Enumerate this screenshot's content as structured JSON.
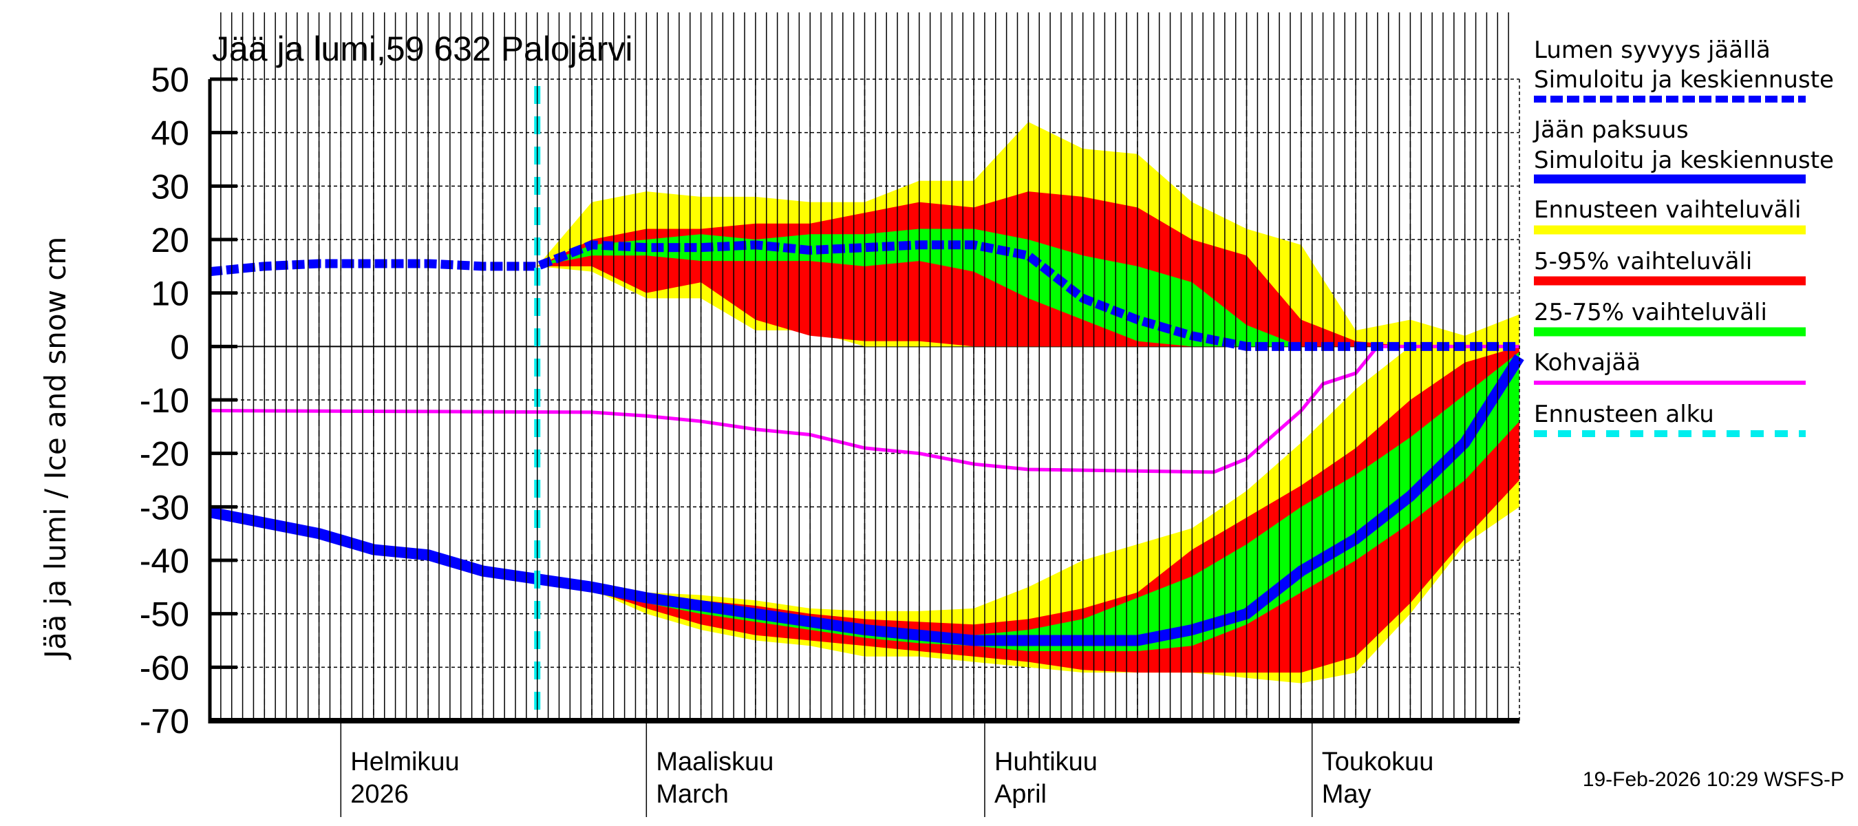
{
  "chart_data": {
    "type": "area",
    "title": "Jää ja lumi,59 632 Palojärvi",
    "ylabel": "Jää ja lumi / Ice and snow    cm",
    "ylim": [
      -70,
      50
    ],
    "yticks": [
      "50",
      "40",
      "30",
      "20",
      "10",
      "0",
      "-10",
      "-20",
      "-30",
      "-40",
      "-50",
      "-60",
      "-70"
    ],
    "xlim": [
      "2026-01-20",
      "2026-05-20"
    ],
    "grid": true,
    "legend_placement": "right",
    "month_labels": [
      {
        "date": "2026-02-01",
        "fi": "Helmikuu",
        "en": "2026"
      },
      {
        "date": "2026-03-01",
        "fi": "Maaliskuu",
        "en": "March"
      },
      {
        "date": "2026-04-01",
        "fi": "Huhtikuu",
        "en": "April"
      },
      {
        "date": "2026-05-01",
        "fi": "Toukokuu",
        "en": "May"
      }
    ],
    "forecast_start": "2026-02-19",
    "timestamp": "19-Feb-2026 10:29 WSFS-P",
    "colors": {
      "snow": "#0000ff",
      "ice": "#0000ff",
      "range": "#ffff00",
      "p5_95": "#ff0000",
      "p25_75": "#00ff00",
      "slush": "#ff00ff",
      "forecast_start": "#00eeee"
    },
    "dates": [
      "2026-01-20",
      "2026-01-25",
      "2026-01-30",
      "2026-02-04",
      "2026-02-09",
      "2026-02-14",
      "2026-02-19",
      "2026-02-24",
      "2026-03-01",
      "2026-03-06",
      "2026-03-11",
      "2026-03-16",
      "2026-03-21",
      "2026-03-26",
      "2026-03-31",
      "2026-04-05",
      "2026-04-10",
      "2026-04-15",
      "2026-04-20",
      "2026-04-25",
      "2026-04-30",
      "2026-05-05",
      "2026-05-10",
      "2026-05-15",
      "2026-05-20"
    ],
    "snow": {
      "median": [
        14,
        15,
        15.5,
        15.5,
        15.5,
        15,
        15,
        19,
        18.5,
        18.5,
        19,
        18,
        18.5,
        19,
        19,
        17,
        9,
        5,
        2,
        0,
        0,
        0,
        0,
        0,
        0
      ],
      "range_top": [
        null,
        null,
        null,
        null,
        null,
        null,
        15,
        27,
        29,
        28,
        28,
        27,
        27,
        31,
        31,
        42,
        37,
        36,
        27,
        22,
        19,
        3,
        5,
        2,
        6
      ],
      "range_bottom": [
        null,
        null,
        null,
        null,
        null,
        null,
        15,
        14,
        9,
        9,
        3,
        3,
        0,
        0,
        0,
        0,
        0,
        0,
        0,
        0,
        0,
        0,
        0,
        0,
        0
      ],
      "p95": [
        null,
        null,
        null,
        null,
        null,
        null,
        15,
        20,
        22,
        22,
        23,
        23,
        25,
        27,
        26,
        29,
        28,
        26,
        20,
        17,
        5,
        1,
        0,
        0,
        0
      ],
      "p5": [
        null,
        null,
        null,
        null,
        null,
        null,
        15,
        15,
        10,
        12,
        5,
        2,
        1,
        1,
        0,
        0,
        0,
        0,
        0,
        0,
        0,
        0,
        0,
        0,
        0
      ],
      "p75": [
        null,
        null,
        null,
        null,
        null,
        null,
        15,
        19,
        20,
        21,
        20,
        21,
        21,
        22,
        22,
        20,
        17,
        15,
        12,
        4,
        0,
        0,
        0,
        0,
        0
      ],
      "p25": [
        null,
        null,
        null,
        null,
        null,
        null,
        15,
        17,
        17,
        16,
        16,
        16,
        15,
        16,
        14,
        9,
        5,
        1,
        0,
        0,
        0,
        0,
        0,
        0,
        0
      ]
    },
    "ice": {
      "median": [
        -31,
        -33,
        -35,
        -38,
        -39,
        -42,
        -43.5,
        -45,
        -47,
        -48.5,
        -50,
        -51.5,
        -53,
        -54,
        -55,
        -55,
        -55,
        -55,
        -53,
        -50,
        -42,
        -36,
        -28,
        -18,
        -2
      ],
      "range_top": [
        null,
        null,
        null,
        null,
        null,
        null,
        -43.5,
        -45,
        -46,
        -46.5,
        -47.5,
        -49,
        -49.5,
        -49.5,
        -49,
        -45,
        -40,
        -37,
        -34,
        -27,
        -18,
        -8,
        0,
        0,
        0
      ],
      "range_bottom": [
        null,
        null,
        null,
        null,
        null,
        null,
        -43.5,
        -45.5,
        -50,
        -53,
        -55,
        -56,
        -58,
        -58,
        -59,
        -60,
        -61,
        -61,
        -61,
        -62,
        -63,
        -61,
        -50,
        -37,
        -30
      ],
      "p95": [
        null,
        null,
        null,
        null,
        null,
        null,
        -43.5,
        -45,
        -47,
        -47.5,
        -48.5,
        -50,
        -51,
        -51.5,
        -52,
        -51,
        -49,
        -46,
        -38,
        -32,
        -26,
        -19,
        -10,
        -3,
        0
      ],
      "p5": [
        null,
        null,
        null,
        null,
        null,
        null,
        -43.5,
        -45.5,
        -49,
        -52,
        -54,
        -55,
        -56,
        -57,
        -58,
        -59,
        -60.5,
        -61,
        -61,
        -61,
        -61,
        -58,
        -48,
        -36,
        -25
      ],
      "p75": [
        null,
        null,
        null,
        null,
        null,
        null,
        -43.5,
        -45,
        -47.5,
        -48.5,
        -49.5,
        -51,
        -52.5,
        -53.5,
        -54,
        -53,
        -51,
        -47,
        -43,
        -37,
        -30,
        -24,
        -17,
        -9,
        -1
      ],
      "p25": [
        null,
        null,
        null,
        null,
        null,
        null,
        -43.5,
        -45.5,
        -48,
        -50,
        -51.5,
        -53,
        -54.5,
        -55.5,
        -56,
        -57,
        -57,
        -57,
        -56,
        -52,
        -46,
        -40,
        -33,
        -25,
        -14
      ]
    },
    "slush": [
      [
        "2026-01-20",
        -12
      ],
      [
        "2026-02-24",
        -12.3
      ],
      [
        "2026-03-01",
        -13
      ],
      [
        "2026-03-06",
        -14
      ],
      [
        "2026-03-11",
        -15.5
      ],
      [
        "2026-03-16",
        -16.5
      ],
      [
        "2026-03-21",
        -19
      ],
      [
        "2026-03-26",
        -20
      ],
      [
        "2026-03-31",
        -22
      ],
      [
        "2026-04-05",
        -23
      ],
      [
        "2026-04-22",
        -23.5
      ],
      [
        "2026-04-25",
        -21
      ],
      [
        "2026-04-30",
        -12
      ],
      [
        "2026-05-02",
        -7
      ],
      [
        "2026-05-05",
        -5
      ],
      [
        "2026-05-07",
        0
      ],
      [
        "2026-05-20",
        0
      ]
    ],
    "legend": [
      {
        "line1": "Lumen syvyys jäällä",
        "line2": "Simuloitu ja keskiennuste",
        "key": "snow"
      },
      {
        "line1": "Jään paksuus",
        "line2": "Simuloitu ja keskiennuste",
        "key": "ice"
      },
      {
        "line1": "Ennusteen vaihteluväli",
        "key": "range"
      },
      {
        "line1": "5-95% vaihteluväli",
        "key": "p5_95"
      },
      {
        "line1": "25-75% vaihteluväli",
        "key": "p25_75"
      },
      {
        "line1": "Kohvajää",
        "key": "slush"
      },
      {
        "line1": "Ennusteen alku",
        "key": "forecast_start"
      }
    ]
  }
}
